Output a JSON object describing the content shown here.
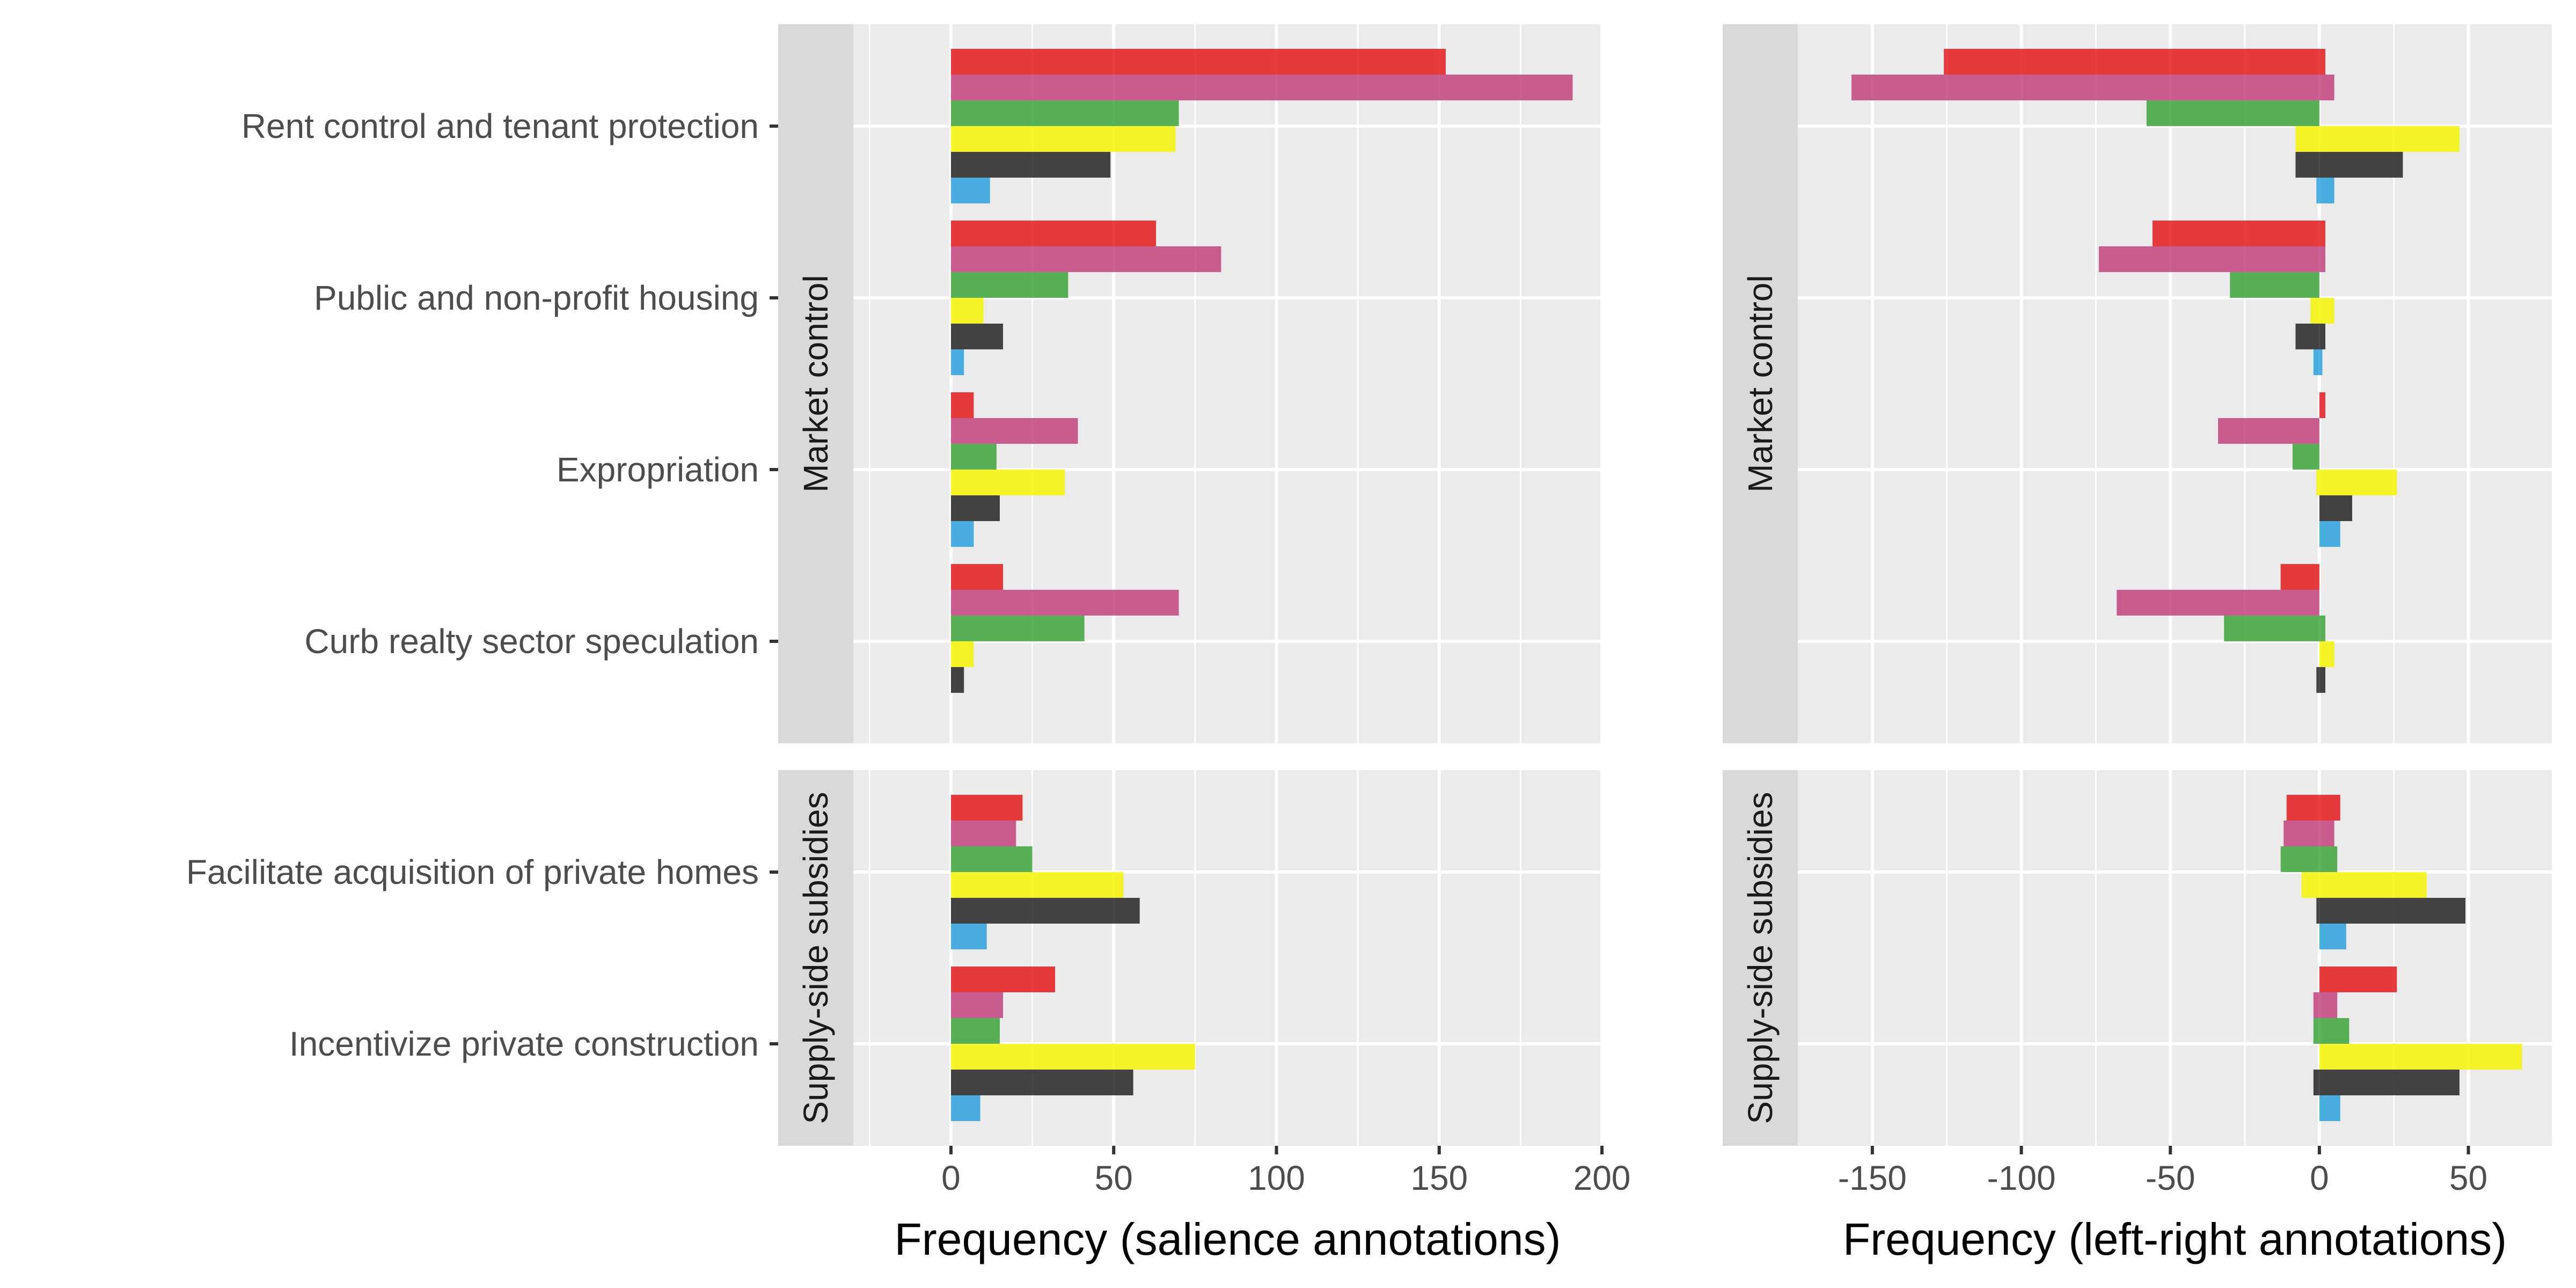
{
  "chart_data": {
    "type": "bar",
    "orientation": "horizontal",
    "facet_groups": [
      {
        "name": "Market control",
        "categories": [
          "Rent control and tenant protection",
          "Public and non-profit housing",
          "Expropriation",
          "Curb realty sector speculation"
        ]
      },
      {
        "name": "Supply-side subsidies",
        "categories": [
          "Facilitate acquisition of private homes",
          "Incentivize private construction"
        ]
      }
    ],
    "series_colors": [
      "#E41A1C",
      "#C2437F",
      "#3CA539",
      "#F5F505",
      "#252525",
      "#2CA2DC"
    ],
    "panels": [
      {
        "xlabel": "Frequency (salience annotations)",
        "xlim": [
          -30,
          200
        ],
        "xticks": [
          0,
          50,
          100,
          150,
          200
        ],
        "xtick_labels": [
          "0",
          "50",
          "100",
          "150",
          "200"
        ],
        "values": {
          "Rent control and tenant protection": [
            152,
            191,
            70,
            69,
            49,
            12
          ],
          "Public and non-profit housing": [
            63,
            83,
            36,
            10,
            16,
            4
          ],
          "Expropriation": [
            7,
            39,
            14,
            35,
            15,
            7
          ],
          "Curb realty sector speculation": [
            16,
            70,
            41,
            7,
            4,
            0
          ],
          "Facilitate acquisition of private homes": [
            22,
            20,
            25,
            53,
            58,
            11
          ],
          "Incentivize private construction": [
            32,
            16,
            15,
            75,
            56,
            9
          ]
        }
      },
      {
        "xlabel": "Frequency (left-right annotations)",
        "xlim": [
          -175,
          78
        ],
        "xticks": [
          -150,
          -100,
          -50,
          0,
          50
        ],
        "xtick_labels": [
          "-150",
          "-100",
          "-50",
          "0",
          "50"
        ],
        "values": {
          "Rent control and tenant protection": [
            [
              -126,
              2
            ],
            [
              -157,
              5
            ],
            [
              -58,
              0
            ],
            [
              -8,
              47
            ],
            [
              -8,
              28
            ],
            [
              -1,
              5
            ]
          ],
          "Public and non-profit housing": [
            [
              -56,
              2
            ],
            [
              -74,
              2
            ],
            [
              -30,
              0
            ],
            [
              -3,
              5
            ],
            [
              -8,
              2
            ],
            [
              -2,
              1
            ]
          ],
          "Expropriation": [
            [
              0,
              2
            ],
            [
              -34,
              0
            ],
            [
              -9,
              0
            ],
            [
              -1,
              26
            ],
            [
              0,
              11
            ],
            [
              0,
              7
            ]
          ],
          "Curb realty sector speculation": [
            [
              -13,
              0
            ],
            [
              -68,
              0
            ],
            [
              -32,
              2
            ],
            [
              0,
              5
            ],
            [
              -1,
              2
            ],
            [
              0,
              0
            ]
          ],
          "Facilitate acquisition of private homes": [
            [
              -11,
              7
            ],
            [
              -12,
              5
            ],
            [
              -13,
              6
            ],
            [
              -6,
              36
            ],
            [
              -1,
              49
            ],
            [
              0,
              9
            ]
          ],
          "Incentivize private construction": [
            [
              0,
              26
            ],
            [
              -2,
              6
            ],
            [
              -2,
              10
            ],
            [
              0,
              68
            ],
            [
              -2,
              47
            ],
            [
              0,
              7
            ]
          ]
        }
      }
    ],
    "strip_labels": [
      "Market control",
      "Supply-side subsidies"
    ]
  }
}
